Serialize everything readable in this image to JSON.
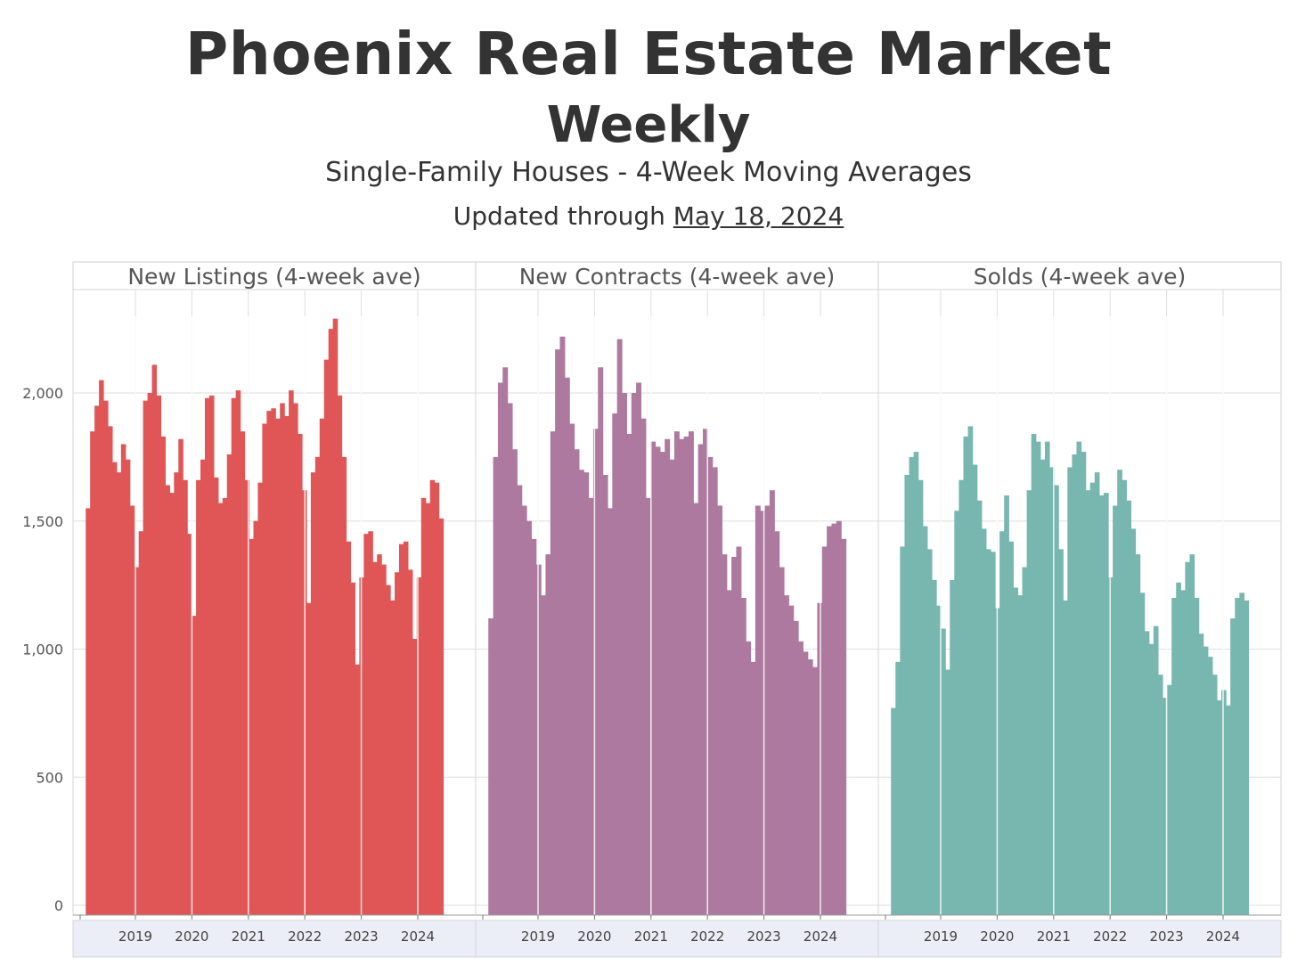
{
  "header": {
    "title": "Phoenix Real Estate Market",
    "subtitle": "Weekly",
    "description": "Single-Family Houses - 4-Week Moving Averages",
    "updated_prefix": "Updated through ",
    "updated_date": "May 18, 2024"
  },
  "colors": {
    "new_listings": "#e05657",
    "new_contracts": "#ad799f",
    "solds": "#78b6b0",
    "grid": "#dedede",
    "axis_strip": "#eceef7"
  },
  "chart_data": [
    {
      "type": "bar",
      "title": "New Listings (4-week ave)",
      "x_range": [
        2018.0,
        2024.45
      ],
      "ylim": [
        0,
        2300
      ],
      "yticks": [
        0,
        500,
        1000,
        1500,
        2000
      ],
      "ytick_labels": [
        "0",
        "500",
        "1,000",
        "1,500",
        "2,000"
      ],
      "xticks": [
        "2019",
        "2020",
        "2021",
        "2022",
        "2023",
        "2024"
      ],
      "series": [
        {
          "values": [
            1550,
            1850,
            1950,
            2050,
            1970,
            1870,
            1730,
            1690,
            1800,
            1740,
            1560,
            1320,
            1460,
            1970,
            2000,
            2110,
            1990,
            1830,
            1640,
            1610,
            1690,
            1820,
            1660,
            1450,
            1130,
            1660,
            1740,
            1980,
            1990,
            1670,
            1570,
            1590,
            1760,
            1980,
            2010,
            1850,
            1660,
            1430,
            1500,
            1650,
            1880,
            1930,
            1940,
            1900,
            1960,
            1910,
            2010,
            1960,
            1840,
            1620,
            1180,
            1690,
            1750,
            1900,
            2130,
            2250,
            2290,
            1990,
            1750,
            1420,
            1260,
            940,
            1280,
            1450,
            1460,
            1340,
            1370,
            1330,
            1250,
            1190,
            1300,
            1410,
            1420,
            1310,
            1040,
            1280,
            1590,
            1570,
            1660,
            1650,
            1510
          ]
        }
      ]
    },
    {
      "type": "bar",
      "title": "New Contracts (4-week ave)",
      "x_range": [
        2018.0,
        2024.45
      ],
      "ylim": [
        0,
        2300
      ],
      "yticks": [
        0,
        500,
        1000,
        1500,
        2000
      ],
      "xticks": [
        "2019",
        "2020",
        "2021",
        "2022",
        "2023",
        "2024"
      ],
      "series": [
        {
          "values": [
            1120,
            1750,
            2040,
            2100,
            1960,
            1780,
            1640,
            1560,
            1500,
            1430,
            1330,
            1210,
            1370,
            1850,
            2170,
            2220,
            2060,
            1880,
            1780,
            1700,
            1690,
            1590,
            1860,
            2100,
            1680,
            1550,
            1920,
            2210,
            2000,
            1840,
            2000,
            2040,
            1900,
            1590,
            1810,
            1790,
            1770,
            1820,
            1740,
            1850,
            1820,
            1830,
            1850,
            1570,
            1800,
            1860,
            1750,
            1710,
            1560,
            1370,
            1230,
            1360,
            1400,
            1200,
            1030,
            950,
            1560,
            1540,
            1560,
            1620,
            1460,
            1320,
            1210,
            1170,
            1110,
            1030,
            990,
            960,
            930,
            1180,
            1400,
            1480,
            1490,
            1500,
            1430
          ]
        }
      ]
    },
    {
      "type": "bar",
      "title": "Solds (4-week ave)",
      "x_range": [
        2018.0,
        2024.45
      ],
      "ylim": [
        0,
        2300
      ],
      "yticks": [
        0,
        500,
        1000,
        1500,
        2000
      ],
      "xticks": [
        "2019",
        "2020",
        "2021",
        "2022",
        "2023",
        "2024"
      ],
      "series": [
        {
          "values": [
            770,
            950,
            1400,
            1680,
            1750,
            1770,
            1660,
            1480,
            1390,
            1270,
            1170,
            1080,
            920,
            1270,
            1540,
            1660,
            1830,
            1870,
            1720,
            1580,
            1470,
            1390,
            1380,
            1160,
            1460,
            1600,
            1420,
            1240,
            1210,
            1320,
            1620,
            1840,
            1810,
            1740,
            1810,
            1710,
            1640,
            1390,
            1190,
            1710,
            1760,
            1810,
            1770,
            1620,
            1650,
            1690,
            1600,
            1610,
            1280,
            1560,
            1700,
            1660,
            1580,
            1470,
            1370,
            1220,
            1070,
            1020,
            1090,
            900,
            810,
            860,
            1200,
            1260,
            1230,
            1340,
            1370,
            1200,
            1060,
            1010,
            970,
            900,
            800,
            840,
            780,
            1120,
            1200,
            1220,
            1190
          ]
        }
      ]
    }
  ]
}
